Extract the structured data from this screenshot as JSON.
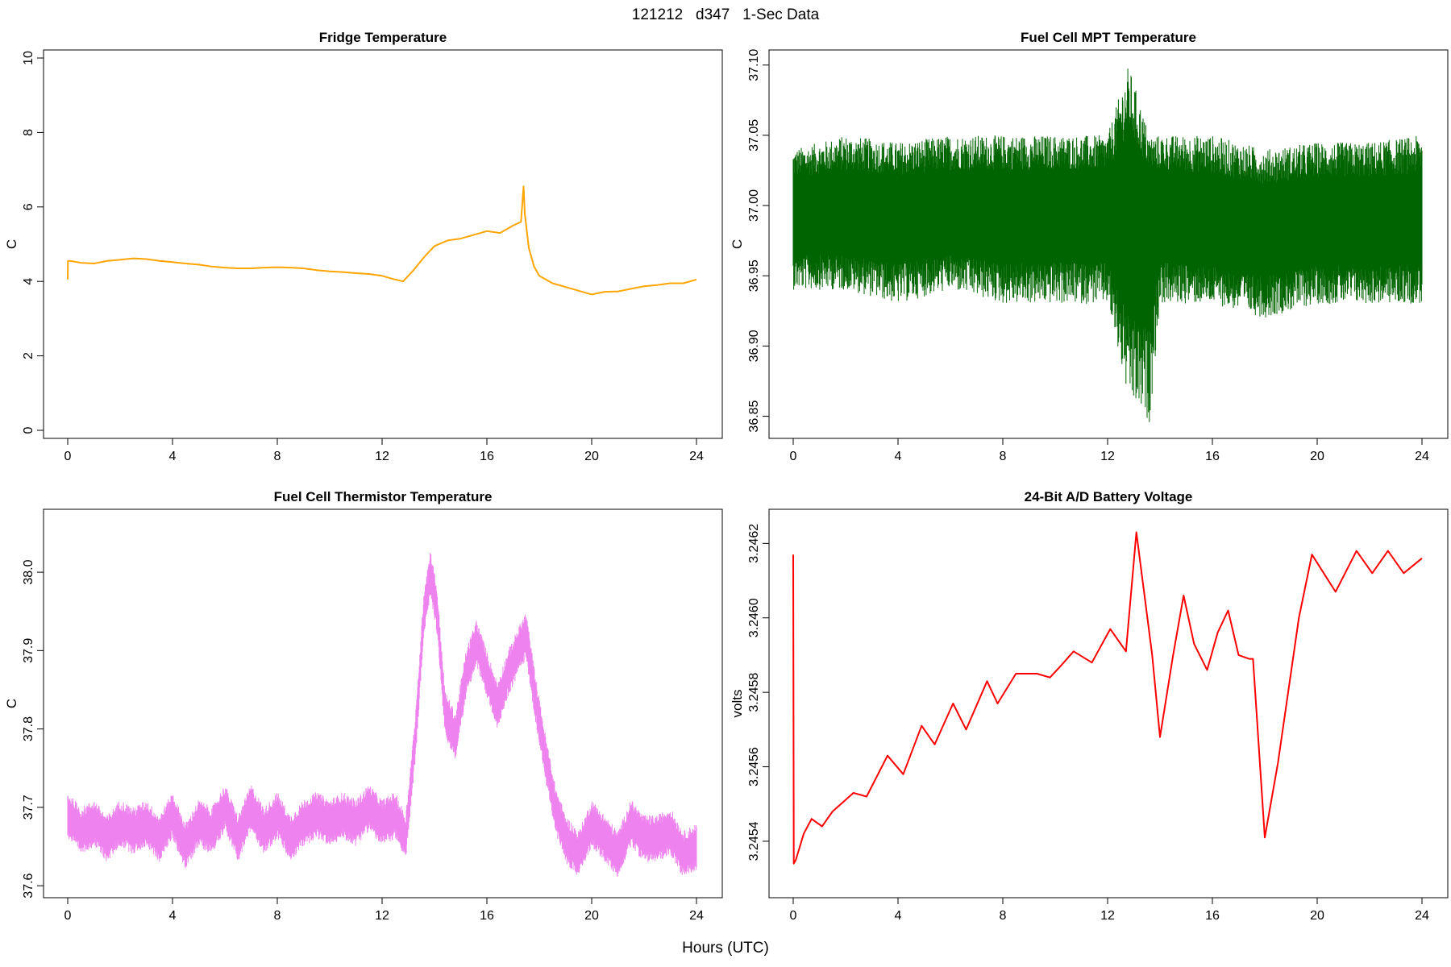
{
  "figure": {
    "title": "121212   d347   1-Sec Data",
    "xlabel": "Hours (UTC)"
  },
  "chart_data": [
    {
      "type": "line",
      "title": "Fridge Temperature",
      "ylabel": "C",
      "color": "#FFA500",
      "xlim": [
        0,
        24
      ],
      "ylim": [
        0,
        10
      ],
      "xticks": [
        0,
        4,
        8,
        12,
        16,
        20,
        24
      ],
      "yticks": [
        0,
        2,
        4,
        6,
        8,
        10
      ],
      "ytick_labels": [
        "0",
        "2",
        "4",
        "6",
        "8",
        "10"
      ],
      "series": [
        {
          "name": "Fridge Temperature",
          "x": [
            0,
            0.01,
            0.1,
            0.5,
            1,
            1.5,
            2,
            2.5,
            3,
            3.5,
            4,
            4.5,
            5,
            5.5,
            6,
            6.5,
            7,
            7.5,
            8,
            8.5,
            9,
            9.5,
            10,
            10.5,
            11,
            11.5,
            12,
            12.5,
            12.8,
            13.2,
            13.6,
            14,
            14.5,
            15,
            15.5,
            16,
            16.5,
            17,
            17.3,
            17.4,
            17.45,
            17.6,
            17.8,
            18,
            18.5,
            19,
            19.5,
            20,
            20.5,
            21,
            21.5,
            22,
            22.5,
            23,
            23.5,
            24
          ],
          "values": [
            4.05,
            4.55,
            4.55,
            4.5,
            4.48,
            4.55,
            4.58,
            4.62,
            4.6,
            4.55,
            4.52,
            4.48,
            4.45,
            4.4,
            4.37,
            4.35,
            4.35,
            4.37,
            4.38,
            4.37,
            4.35,
            4.3,
            4.27,
            4.25,
            4.22,
            4.2,
            4.15,
            4.05,
            4.0,
            4.3,
            4.65,
            4.95,
            5.1,
            5.15,
            5.25,
            5.35,
            5.3,
            5.5,
            5.6,
            6.55,
            5.8,
            4.9,
            4.4,
            4.15,
            3.95,
            3.85,
            3.75,
            3.65,
            3.72,
            3.73,
            3.8,
            3.87,
            3.9,
            3.95,
            3.95,
            4.05
          ]
        }
      ]
    },
    {
      "type": "line",
      "title": "Fuel Cell MPT Temperature",
      "ylabel": "C",
      "color": "#006400",
      "xlim": [
        0,
        24
      ],
      "ylim": [
        36.84,
        37.105
      ],
      "xticks": [
        0,
        4,
        8,
        12,
        16,
        20,
        24
      ],
      "yticks": [
        36.85,
        36.9,
        36.95,
        37.0,
        37.05,
        37.1
      ],
      "ytick_labels": [
        "36.85",
        "36.90",
        "36.95",
        "37.00",
        "37.05",
        "37.10"
      ],
      "noisy": true,
      "series": [
        {
          "name": "Fuel Cell MPT Temperature",
          "x": [
            0,
            2,
            4,
            6,
            8,
            10,
            12,
            12.8,
            13.6,
            14,
            16,
            18,
            20,
            22,
            24
          ],
          "values": [
            36.995,
            36.995,
            36.993,
            36.995,
            36.995,
            36.995,
            36.995,
            36.995,
            36.993,
            36.995,
            36.99,
            36.985,
            36.99,
            36.99,
            36.99
          ],
          "band_upper": [
            37.04,
            37.05,
            37.045,
            37.05,
            37.05,
            37.05,
            37.05,
            37.1,
            37.05,
            37.05,
            37.05,
            37.04,
            37.045,
            37.045,
            37.05
          ],
          "band_lower": [
            36.94,
            36.94,
            36.93,
            36.94,
            36.93,
            36.93,
            36.93,
            36.86,
            36.845,
            36.93,
            36.93,
            36.92,
            36.93,
            36.93,
            36.93
          ]
        }
      ]
    },
    {
      "type": "line",
      "title": "Fuel Cell Thermistor Temperature",
      "ylabel": "C",
      "color": "#EE82EE",
      "xlim": [
        0,
        24
      ],
      "ylim": [
        37.595,
        38.07
      ],
      "xticks": [
        0,
        4,
        8,
        12,
        16,
        20,
        24
      ],
      "yticks": [
        37.6,
        37.7,
        37.8,
        37.9,
        38.0
      ],
      "ytick_labels": [
        "37.6",
        "37.7",
        "37.8",
        "37.9",
        "38.0"
      ],
      "noisy": true,
      "series": [
        {
          "name": "Fuel Cell Thermistor Temperature",
          "x": [
            0,
            0.5,
            1,
            1.5,
            2,
            2.5,
            3,
            3.5,
            4,
            4.5,
            5,
            5.5,
            6,
            6.5,
            7,
            7.5,
            8,
            8.5,
            9,
            9.5,
            10,
            10.5,
            11,
            11.5,
            12,
            12.5,
            12.9,
            13.3,
            13.6,
            13.85,
            14.1,
            14.4,
            14.8,
            15.2,
            15.6,
            16,
            16.4,
            16.8,
            17.2,
            17.5,
            17.8,
            18.2,
            18.6,
            19,
            19.5,
            20,
            20.5,
            21,
            21.5,
            22,
            22.5,
            23,
            23.5,
            24
          ],
          "values": [
            37.69,
            37.67,
            37.68,
            37.66,
            37.68,
            37.67,
            37.68,
            37.66,
            37.69,
            37.65,
            37.68,
            37.67,
            37.7,
            37.66,
            37.7,
            37.67,
            37.69,
            37.66,
            37.68,
            37.69,
            37.68,
            37.69,
            37.68,
            37.7,
            37.68,
            37.69,
            37.66,
            37.8,
            37.95,
            38.0,
            37.95,
            37.82,
            37.79,
            37.87,
            37.91,
            37.87,
            37.83,
            37.87,
            37.9,
            37.92,
            37.85,
            37.77,
            37.7,
            37.66,
            37.64,
            37.68,
            37.66,
            37.64,
            37.68,
            37.66,
            37.66,
            37.67,
            37.64,
            37.65
          ]
        }
      ]
    },
    {
      "type": "line",
      "title": "24-Bit A/D Battery Voltage",
      "ylabel": "volts",
      "color": "#FF0000",
      "xlim": [
        0,
        24
      ],
      "ylim": [
        3.24527,
        3.24627
      ],
      "xticks": [
        0,
        4,
        8,
        12,
        16,
        20,
        24
      ],
      "yticks": [
        3.2454,
        3.2456,
        3.2458,
        3.246,
        3.2462
      ],
      "ytick_labels": [
        "3.2454",
        "3.2456",
        "3.2458",
        "3.2460",
        "3.2462"
      ],
      "series": [
        {
          "name": "24-Bit A/D Battery Voltage",
          "x": [
            0,
            0.02,
            0.1,
            0.4,
            0.7,
            1.1,
            1.5,
            2.3,
            2.8,
            3.6,
            4.2,
            4.9,
            5.4,
            6.1,
            6.6,
            7.4,
            7.8,
            8.5,
            9.3,
            9.8,
            10.2,
            10.7,
            11.4,
            12.1,
            12.7,
            13.1,
            13.7,
            14.0,
            14.5,
            14.9,
            15.3,
            15.8,
            16.2,
            16.6,
            17.0,
            17.4,
            17.55,
            18.0,
            18.5,
            19.3,
            19.8,
            20.7,
            21.5,
            22.1,
            22.7,
            23.3,
            24.0
          ],
          "values": [
            3.24617,
            3.24534,
            3.24535,
            3.24542,
            3.24546,
            3.24544,
            3.24548,
            3.24553,
            3.24552,
            3.24563,
            3.24558,
            3.24571,
            3.24566,
            3.24577,
            3.2457,
            3.24583,
            3.24577,
            3.24585,
            3.24585,
            3.24584,
            3.24587,
            3.24591,
            3.24588,
            3.24597,
            3.24591,
            3.24623,
            3.2459,
            3.24568,
            3.2459,
            3.24606,
            3.24593,
            3.24586,
            3.24596,
            3.24602,
            3.2459,
            3.24589,
            3.24589,
            3.24541,
            3.24561,
            3.246,
            3.24617,
            3.24607,
            3.24618,
            3.24612,
            3.24618,
            3.24612,
            3.24616
          ]
        }
      ]
    }
  ]
}
